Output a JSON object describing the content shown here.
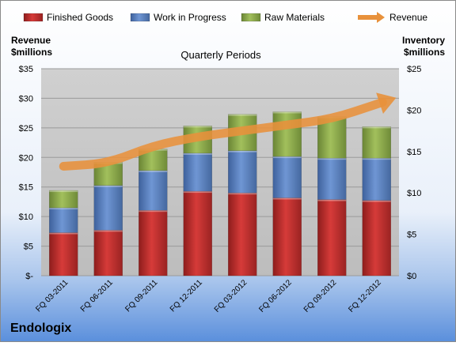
{
  "company": "Endologix",
  "chart_data": {
    "type": "bar",
    "subtitle": "Quarterly Periods",
    "y_left_label": [
      "Revenue",
      "$millions"
    ],
    "y_right_label": [
      "Inventory",
      "$millions"
    ],
    "categories": [
      "FQ 03-2011",
      "FQ 06-2011",
      "FQ 09-2011",
      "FQ 12-2011",
      "FQ 03-2012",
      "FQ 06-2012",
      "FQ 09-2012",
      "FQ 12-2012"
    ],
    "y_left_range": [
      0,
      35
    ],
    "y_left_ticks": [
      "$-",
      "$5",
      "$10",
      "$15",
      "$20",
      "$25",
      "$30",
      "$35"
    ],
    "y_right_range": [
      0,
      25
    ],
    "y_right_ticks": [
      "$0",
      "$5",
      "$10",
      "$15",
      "$20",
      "$25"
    ],
    "legend_position": "top",
    "series": [
      {
        "name": "Finished Goods",
        "axis": "right",
        "color": "#c0302f",
        "values": [
          5.2,
          5.5,
          7.9,
          10.2,
          10.0,
          9.4,
          9.2,
          9.1
        ]
      },
      {
        "name": "Work in Progress",
        "axis": "right",
        "color": "#5b83c2",
        "values": [
          3.0,
          5.4,
          4.8,
          4.6,
          5.1,
          5.0,
          5.0,
          5.1
        ]
      },
      {
        "name": "Raw Materials",
        "axis": "right",
        "color": "#8ead4b",
        "values": [
          2.1,
          2.8,
          2.6,
          3.3,
          4.4,
          5.4,
          5.0,
          3.8
        ]
      },
      {
        "name": "Revenue",
        "axis": "left",
        "type": "line",
        "color": "#e8913b",
        "values": [
          18.5,
          19.0,
          22.0,
          23.5,
          24.5,
          25.5,
          26.5,
          29.0
        ]
      }
    ]
  }
}
